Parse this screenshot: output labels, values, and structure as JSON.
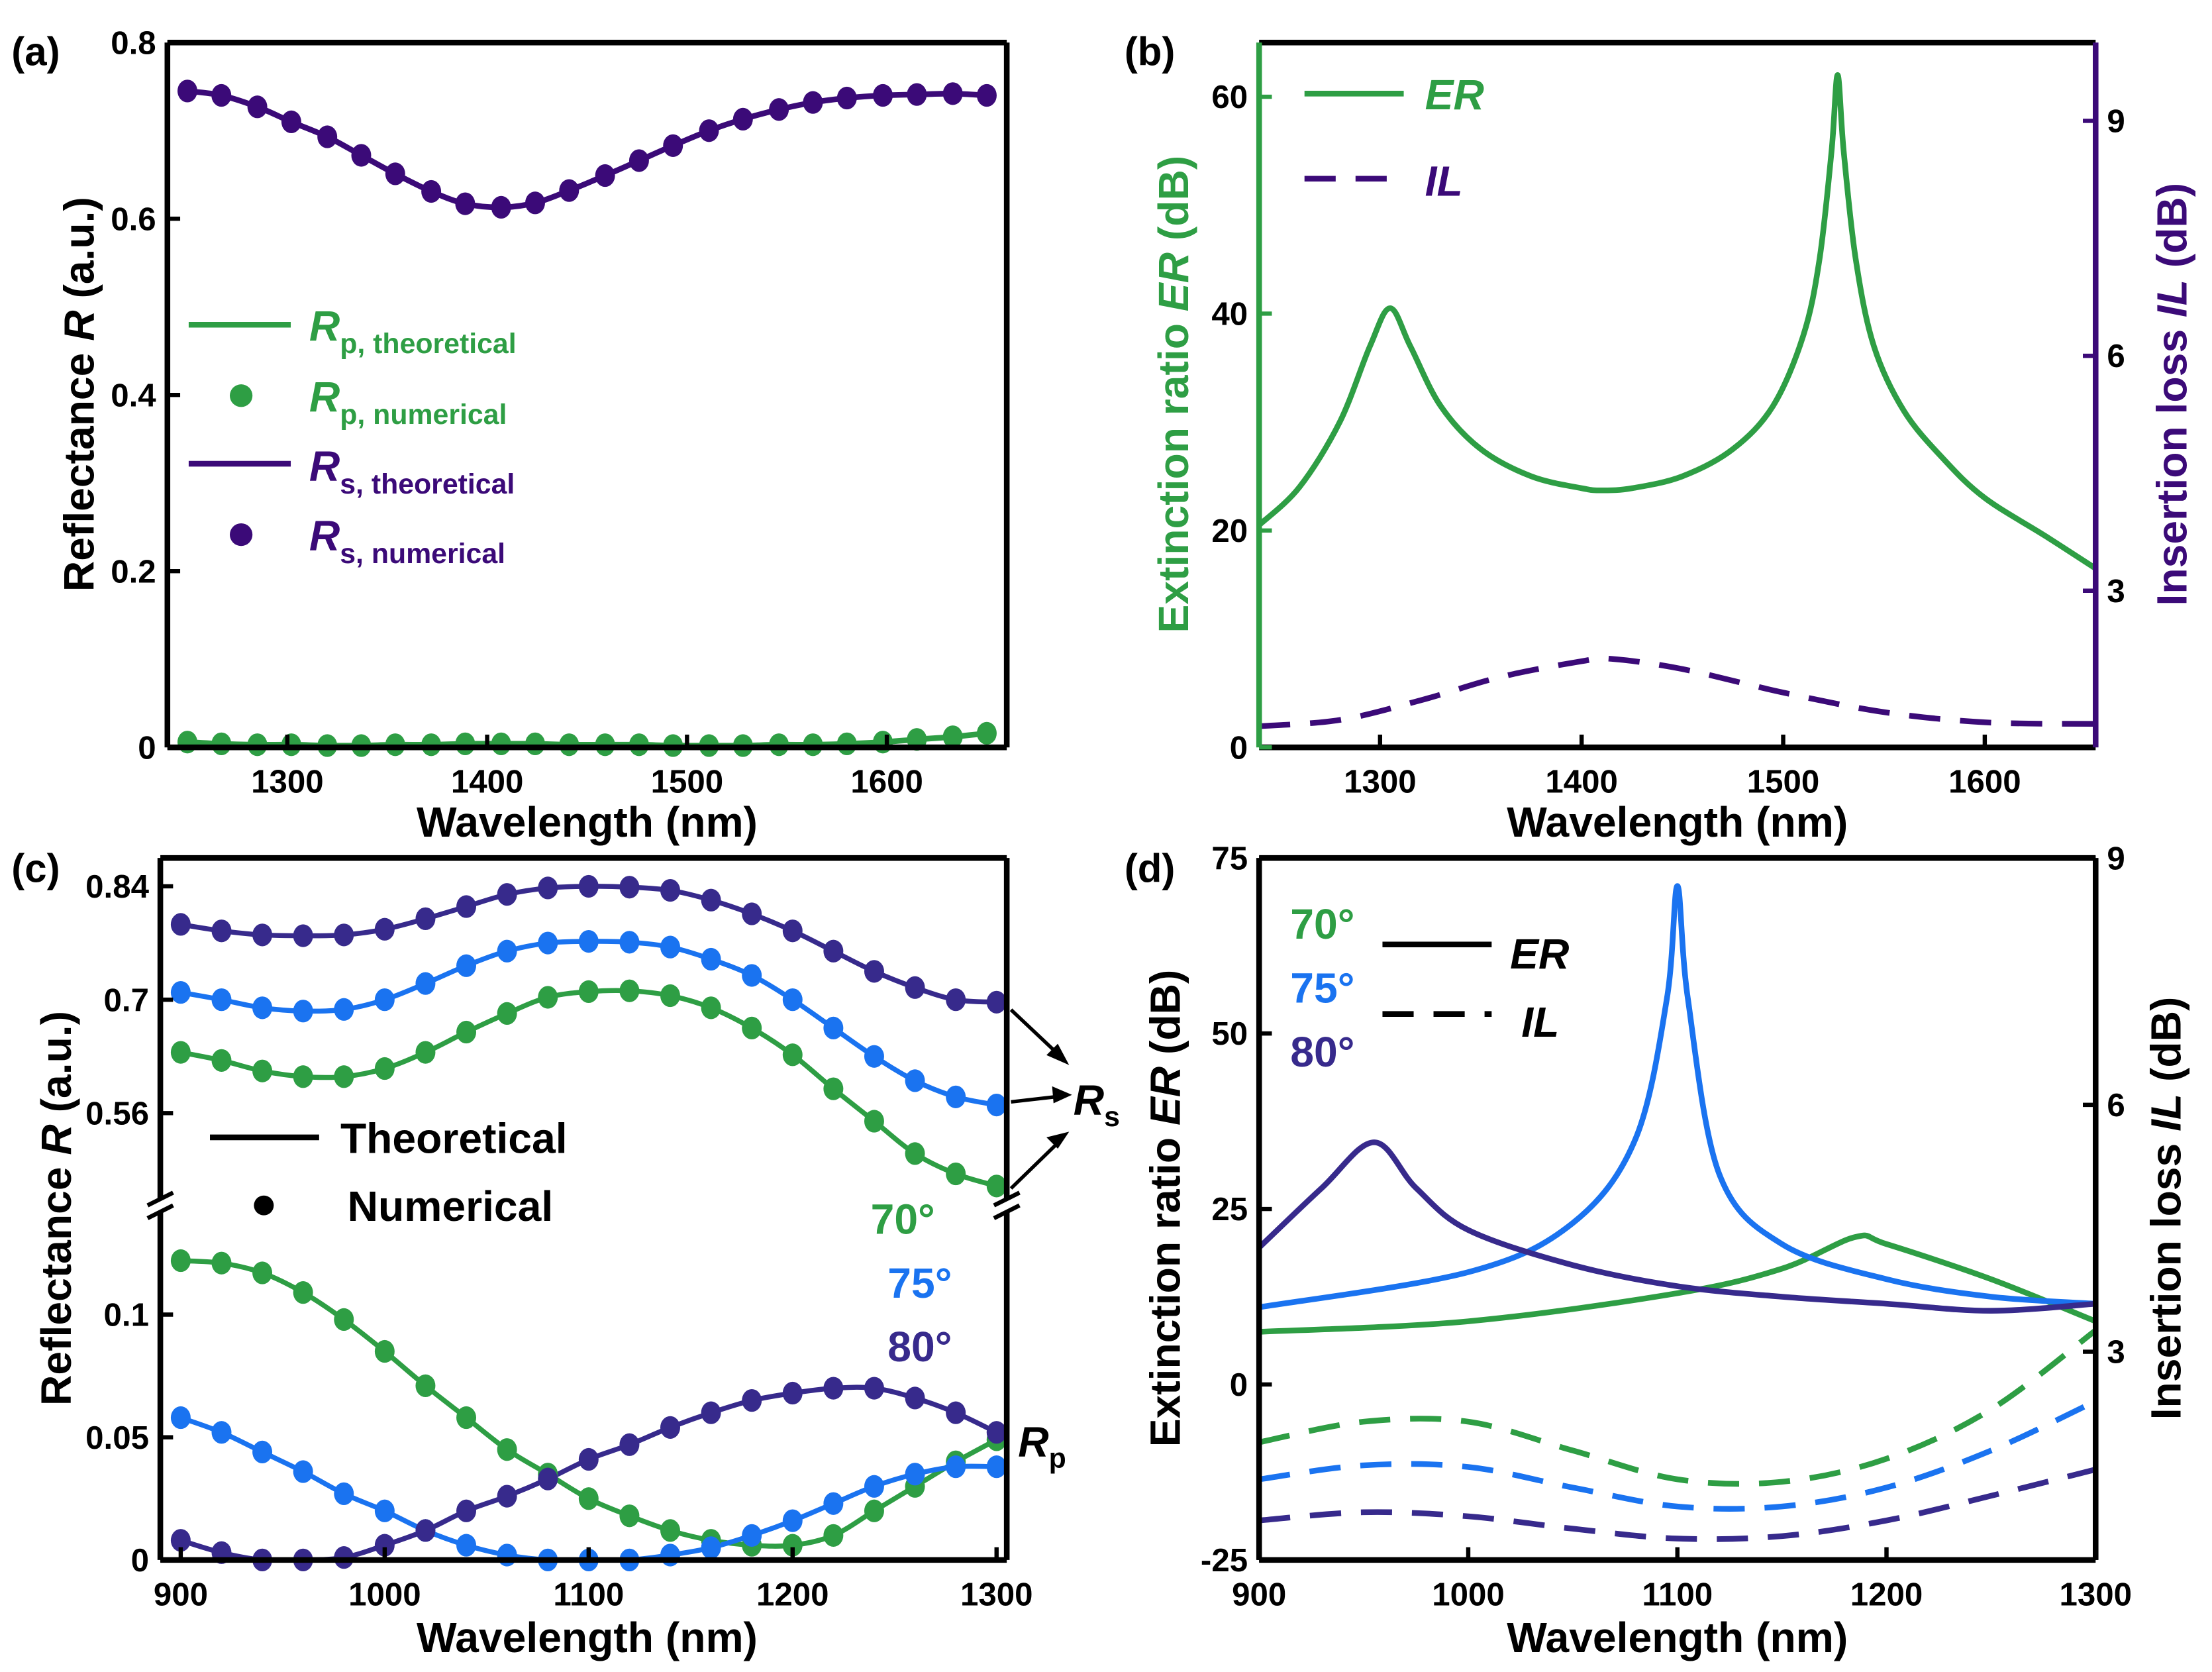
{
  "colors": {
    "green": "#2e9e44",
    "purple": "#3b0a78",
    "blue": "#1a73f0",
    "navy": "#372a8c",
    "black": "#000000"
  },
  "chart_data": [
    {
      "panel_label": "(a)",
      "type": "line",
      "xlabel": "Wavelength (nm)",
      "ylabel": {
        "pre": "Reflectance ",
        "var": "R",
        "post": " (a.u.)"
      },
      "xlim": [
        1240,
        1660
      ],
      "ylim": [
        0,
        0.8
      ],
      "xticks": [
        1300,
        1400,
        1500,
        1600
      ],
      "yticks": [
        0,
        0.2,
        0.4,
        0.6,
        0.8
      ],
      "ytick_labels": [
        "0",
        "0.2",
        "0.4",
        "0.6",
        "0.8"
      ],
      "legend": [
        {
          "var": "R",
          "sub": "p, theoretical",
          "color": "#2e9e44",
          "kind": "line"
        },
        {
          "var": "R",
          "sub": "p, numerical",
          "color": "#2e9e44",
          "kind": "marker"
        },
        {
          "var": "R",
          "sub": "s, theoretical",
          "color": "#3b0a78",
          "kind": "line"
        },
        {
          "var": "R",
          "sub": "s, numerical",
          "color": "#3b0a78",
          "kind": "marker"
        }
      ],
      "series": [
        {
          "color": "#3b0a78",
          "style": "solid",
          "markers": true,
          "x": [
            1250,
            1267,
            1285,
            1302,
            1320,
            1337,
            1354,
            1372,
            1389,
            1407,
            1424,
            1441,
            1459,
            1476,
            1493,
            1511,
            1528,
            1546,
            1563,
            1580,
            1598,
            1615,
            1633,
            1650
          ],
          "y": [
            0.745,
            0.74,
            0.727,
            0.71,
            0.693,
            0.672,
            0.651,
            0.631,
            0.617,
            0.613,
            0.618,
            0.632,
            0.649,
            0.666,
            0.683,
            0.7,
            0.713,
            0.724,
            0.732,
            0.737,
            0.74,
            0.741,
            0.742,
            0.74
          ]
        },
        {
          "color": "#2e9e44",
          "style": "solid",
          "markers": true,
          "x": [
            1250,
            1267,
            1285,
            1302,
            1320,
            1337,
            1354,
            1372,
            1389,
            1407,
            1424,
            1441,
            1459,
            1476,
            1493,
            1511,
            1528,
            1546,
            1563,
            1580,
            1598,
            1615,
            1633,
            1650
          ],
          "y": [
            0.006,
            0.004,
            0.003,
            0.003,
            0.002,
            0.002,
            0.003,
            0.003,
            0.004,
            0.004,
            0.004,
            0.003,
            0.003,
            0.003,
            0.002,
            0.002,
            0.002,
            0.003,
            0.003,
            0.004,
            0.006,
            0.009,
            0.012,
            0.016
          ]
        }
      ]
    },
    {
      "panel_label": "(b)",
      "type": "line",
      "xlabel": "Wavelength (nm)",
      "ylabel": {
        "pre": "Extinction ratio ",
        "var": "ER",
        "post": " (dB)"
      },
      "ylabel_right": {
        "pre": "Insertion loss ",
        "var": "IL",
        "post": " (dB)"
      },
      "xlim": [
        1240,
        1655
      ],
      "ylim": [
        0,
        65
      ],
      "ylim_right": [
        1,
        10
      ],
      "xticks": [
        1300,
        1400,
        1500,
        1600
      ],
      "yticks": [
        0,
        20,
        40,
        60
      ],
      "ytick_labels": [
        "0",
        "20",
        "40",
        "60"
      ],
      "yticks_right": [
        3,
        6,
        9
      ],
      "ytick_labels_right": [
        "3",
        "6",
        "9"
      ],
      "left_axis_color": "#2e9e44",
      "right_axis_color": "#3b0a78",
      "legend": [
        {
          "var": "ER",
          "color": "#2e9e44",
          "kind": "line"
        },
        {
          "var": "IL",
          "color": "#3b0a78",
          "kind": "dashed"
        }
      ],
      "series": [
        {
          "name": "ER",
          "axis": "left",
          "color": "#2e9e44",
          "style": "solid",
          "x": [
            1240,
            1260,
            1280,
            1295,
            1305,
            1315,
            1330,
            1350,
            1375,
            1400,
            1410,
            1425,
            1450,
            1475,
            1495,
            1510,
            1518,
            1524,
            1527,
            1530,
            1536,
            1545,
            1560,
            1580,
            1600,
            1630,
            1655
          ],
          "y": [
            20.5,
            24,
            30,
            37,
            40.5,
            37,
            31.5,
            27.5,
            25,
            23.9,
            23.7,
            23.9,
            25,
            27.5,
            31.5,
            38,
            45,
            55,
            62,
            55,
            45,
            37,
            31,
            26.5,
            23,
            19.5,
            16.5
          ]
        },
        {
          "name": "IL",
          "axis": "right",
          "color": "#3b0a78",
          "style": "dashed",
          "x": [
            1240,
            1280,
            1320,
            1360,
            1400,
            1415,
            1450,
            1500,
            1550,
            1600,
            1655
          ],
          "y": [
            1.27,
            1.35,
            1.6,
            1.9,
            2.1,
            2.13,
            2.0,
            1.7,
            1.45,
            1.32,
            1.3
          ]
        }
      ]
    },
    {
      "panel_label": "(c)",
      "type": "line",
      "xlabel": "Wavelength (nm)",
      "ylabel": {
        "pre": "Reflectance ",
        "var": "R",
        "post": " (a.u.)"
      },
      "xlim": [
        890,
        1305
      ],
      "ylim_upper": [
        0.446,
        0.875
      ],
      "ylim_lower": [
        0,
        0.1445
      ],
      "broken_y_axis": true,
      "xticks": [
        900,
        1000,
        1100,
        1200,
        1300
      ],
      "yticks": [
        0,
        0.05,
        0.1,
        0.56,
        0.7,
        0.84
      ],
      "ytick_labels": [
        "0",
        "0.05",
        "0.1",
        "0.56",
        "0.7",
        "0.84"
      ],
      "legend": [
        {
          "text": "Theoretical",
          "kind": "line",
          "color": "#000000"
        },
        {
          "text": "Numerical",
          "kind": "marker",
          "color": "#000000"
        }
      ],
      "angles": [
        {
          "text": "70°",
          "color": "#2e9e44"
        },
        {
          "text": "75°",
          "color": "#1a73f0"
        },
        {
          "text": "80°",
          "color": "#372a8c"
        }
      ],
      "annotations": {
        "rs": {
          "var": "R",
          "sub": "s"
        },
        "rp": {
          "var": "R",
          "sub": "p"
        }
      },
      "x": [
        900,
        920,
        940,
        960,
        980,
        1000,
        1020,
        1040,
        1060,
        1080,
        1100,
        1120,
        1140,
        1160,
        1180,
        1200,
        1220,
        1240,
        1260,
        1280,
        1300
      ],
      "series": [
        {
          "group": "Rs",
          "angle": "80°",
          "color": "#372a8c",
          "y": [
            0.793,
            0.785,
            0.78,
            0.779,
            0.78,
            0.787,
            0.8,
            0.815,
            0.83,
            0.838,
            0.84,
            0.839,
            0.835,
            0.823,
            0.806,
            0.785,
            0.76,
            0.735,
            0.715,
            0.7,
            0.697
          ]
        },
        {
          "group": "Rs",
          "angle": "75°",
          "color": "#1a73f0",
          "y": [
            0.709,
            0.7,
            0.69,
            0.686,
            0.688,
            0.7,
            0.72,
            0.742,
            0.76,
            0.77,
            0.772,
            0.771,
            0.765,
            0.75,
            0.73,
            0.7,
            0.665,
            0.63,
            0.6,
            0.58,
            0.57
          ]
        },
        {
          "group": "Rs",
          "angle": "70°",
          "color": "#2e9e44",
          "y": [
            0.635,
            0.625,
            0.612,
            0.605,
            0.605,
            0.615,
            0.635,
            0.66,
            0.683,
            0.703,
            0.71,
            0.711,
            0.705,
            0.69,
            0.665,
            0.632,
            0.59,
            0.55,
            0.51,
            0.485,
            0.47
          ]
        },
        {
          "group": "Rp",
          "angle": "70°",
          "color": "#2e9e44",
          "y": [
            0.122,
            0.121,
            0.117,
            0.109,
            0.098,
            0.085,
            0.071,
            0.058,
            0.045,
            0.035,
            0.025,
            0.018,
            0.012,
            0.008,
            0.006,
            0.006,
            0.01,
            0.02,
            0.03,
            0.04,
            0.049
          ]
        },
        {
          "group": "Rp",
          "angle": "75°",
          "color": "#1a73f0",
          "y": [
            0.058,
            0.052,
            0.044,
            0.036,
            0.027,
            0.02,
            0.012,
            0.006,
            0.002,
            0.0,
            0.0,
            0.0,
            0.002,
            0.005,
            0.01,
            0.016,
            0.023,
            0.03,
            0.035,
            0.038,
            0.038
          ]
        },
        {
          "group": "Rp",
          "angle": "80°",
          "color": "#372a8c",
          "y": [
            0.008,
            0.003,
            0.0,
            0.0,
            0.001,
            0.006,
            0.012,
            0.02,
            0.026,
            0.033,
            0.041,
            0.047,
            0.054,
            0.06,
            0.065,
            0.068,
            0.07,
            0.07,
            0.066,
            0.06,
            0.052
          ]
        }
      ]
    },
    {
      "panel_label": "(d)",
      "type": "line",
      "xlabel": "Wavelength (nm)",
      "ylabel": {
        "pre": "Extinction ratio ",
        "var": "ER",
        "post": " (dB)"
      },
      "ylabel_right": {
        "pre": "Insertion loss ",
        "var": "IL",
        "post": " (dB)"
      },
      "xlim": [
        900,
        1300
      ],
      "ylim": [
        -25,
        75
      ],
      "ylim_right": [
        0.47,
        9
      ],
      "xticks": [
        900,
        1000,
        1100,
        1200,
        1300
      ],
      "yticks": [
        -25,
        0,
        25,
        50,
        75
      ],
      "ytick_labels": [
        "-25",
        "0",
        "25",
        "50",
        "75"
      ],
      "yticks_right": [
        3,
        6,
        9
      ],
      "ytick_labels_right": [
        "3",
        "6",
        "9"
      ],
      "angles": [
        {
          "text": "70°",
          "color": "#2e9e44"
        },
        {
          "text": "75°",
          "color": "#1a73f0"
        },
        {
          "text": "80°",
          "color": "#372a8c"
        }
      ],
      "legend": [
        {
          "var": "ER",
          "kind": "line",
          "color": "#000000"
        },
        {
          "var": "IL",
          "kind": "dashed",
          "color": "#000000"
        }
      ],
      "series": [
        {
          "name": "ER",
          "angle": "70°",
          "axis": "left",
          "style": "solid",
          "color": "#2e9e44",
          "x": [
            900,
            1000,
            1100,
            1150,
            1185,
            1200,
            1250,
            1300
          ],
          "y": [
            7.5,
            9,
            13,
            16.5,
            21,
            20,
            15,
            9
          ]
        },
        {
          "name": "ER",
          "angle": "75°",
          "axis": "left",
          "style": "solid",
          "color": "#1a73f0",
          "x": [
            900,
            1000,
            1050,
            1080,
            1095,
            1100,
            1105,
            1120,
            1150,
            1200,
            1250,
            1300
          ],
          "y": [
            11,
            16,
            23,
            35,
            55,
            71,
            55,
            30,
            20,
            15,
            12.5,
            11.5
          ]
        },
        {
          "name": "ER",
          "angle": "80°",
          "axis": "left",
          "style": "solid",
          "color": "#372a8c",
          "x": [
            900,
            930,
            955,
            975,
            1000,
            1050,
            1100,
            1150,
            1200,
            1250,
            1300
          ],
          "y": [
            19.5,
            28,
            34.5,
            28,
            22,
            17,
            14,
            12.5,
            11.5,
            10.5,
            11.5
          ]
        },
        {
          "name": "IL",
          "angle": "70°",
          "axis": "right",
          "style": "dashed",
          "color": "#2e9e44",
          "x": [
            900,
            950,
            1000,
            1050,
            1100,
            1150,
            1200,
            1250,
            1300
          ],
          "y": [
            1.9,
            2.15,
            2.15,
            1.8,
            1.45,
            1.42,
            1.7,
            2.3,
            3.26
          ]
        },
        {
          "name": "IL",
          "angle": "75°",
          "axis": "right",
          "style": "dashed",
          "color": "#1a73f0",
          "x": [
            900,
            950,
            1000,
            1050,
            1100,
            1150,
            1200,
            1250,
            1300
          ],
          "y": [
            1.45,
            1.62,
            1.6,
            1.35,
            1.12,
            1.12,
            1.35,
            1.8,
            2.4
          ]
        },
        {
          "name": "IL",
          "angle": "80°",
          "axis": "right",
          "style": "dashed",
          "color": "#372a8c",
          "x": [
            900,
            950,
            1000,
            1050,
            1100,
            1150,
            1200,
            1250,
            1300
          ],
          "y": [
            0.95,
            1.05,
            1.0,
            0.85,
            0.73,
            0.76,
            0.95,
            1.25,
            1.57
          ]
        }
      ]
    }
  ]
}
